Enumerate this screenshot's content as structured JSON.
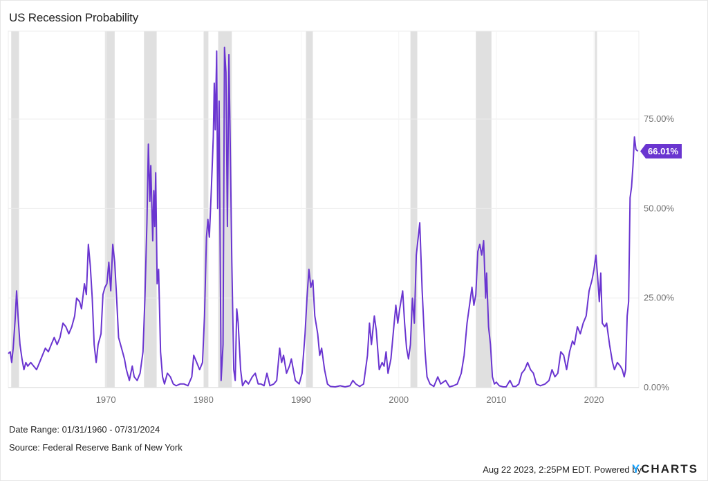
{
  "title": "US Recession Probability",
  "footer": {
    "date_range": "Date Range: 01/31/1960 - 07/31/2024",
    "source": "Source: Federal Reserve Bank of New York",
    "timestamp": "Aug 22 2023, 2:25PM EDT. Powered by",
    "brand_y": "Y",
    "brand_rest": "CHARTS"
  },
  "colors": {
    "line": "#6a35d0",
    "recession_band": "#e0e0e0",
    "grid": "#ececec",
    "label_bg": "#6a35d0",
    "brand_accent": "#1aa5ff"
  },
  "last_value_label": "66.01%",
  "chart_data": {
    "type": "line",
    "title": "US Recession Probability",
    "xlabel": "",
    "ylabel": "",
    "x_range": [
      1960.0,
      2024.6
    ],
    "ylim": [
      0,
      100
    ],
    "x_ticks": [
      1970,
      1980,
      1990,
      2000,
      2010,
      2020
    ],
    "x_tick_labels": [
      "1970",
      "1980",
      "1990",
      "2000",
      "2010",
      "2020"
    ],
    "y_ticks": [
      0,
      25,
      50,
      75
    ],
    "y_tick_labels": [
      "0.00%",
      "25.00%",
      "50.00%",
      "75.00%"
    ],
    "grid": true,
    "y_axis_position": "right",
    "legend": null,
    "last_value": 66.01,
    "recessions": [
      [
        1960.3,
        1961.1
      ],
      [
        1969.9,
        1970.9
      ],
      [
        1973.9,
        1975.2
      ],
      [
        1980.0,
        1980.5
      ],
      [
        1981.5,
        1982.9
      ],
      [
        1990.5,
        1991.2
      ],
      [
        2001.2,
        2001.9
      ],
      [
        2007.9,
        2009.5
      ],
      [
        2020.1,
        2020.3
      ]
    ],
    "series": [
      {
        "name": "US Recession Probability",
        "unit": "%",
        "points": [
          [
            1960.0,
            9.5
          ],
          [
            1960.2,
            10
          ],
          [
            1960.35,
            7
          ],
          [
            1960.5,
            11
          ],
          [
            1960.7,
            19
          ],
          [
            1960.85,
            27
          ],
          [
            1961.0,
            20
          ],
          [
            1961.2,
            12
          ],
          [
            1961.4,
            8
          ],
          [
            1961.6,
            5
          ],
          [
            1961.8,
            7
          ],
          [
            1962.0,
            6
          ],
          [
            1962.3,
            7
          ],
          [
            1962.6,
            6
          ],
          [
            1962.9,
            5
          ],
          [
            1963.2,
            7
          ],
          [
            1963.5,
            9
          ],
          [
            1963.8,
            11
          ],
          [
            1964.1,
            10
          ],
          [
            1964.4,
            12
          ],
          [
            1964.7,
            14
          ],
          [
            1965.0,
            12
          ],
          [
            1965.3,
            14
          ],
          [
            1965.6,
            18
          ],
          [
            1965.9,
            17
          ],
          [
            1966.2,
            15
          ],
          [
            1966.5,
            17
          ],
          [
            1966.8,
            20
          ],
          [
            1967.0,
            25
          ],
          [
            1967.3,
            24
          ],
          [
            1967.5,
            22
          ],
          [
            1967.8,
            29
          ],
          [
            1968.0,
            26
          ],
          [
            1968.2,
            40
          ],
          [
            1968.4,
            34
          ],
          [
            1968.6,
            25
          ],
          [
            1968.8,
            12
          ],
          [
            1969.0,
            7
          ],
          [
            1969.2,
            12
          ],
          [
            1969.5,
            15
          ],
          [
            1969.7,
            26
          ],
          [
            1969.9,
            28
          ],
          [
            1970.1,
            29
          ],
          [
            1970.3,
            35
          ],
          [
            1970.5,
            27
          ],
          [
            1970.7,
            40
          ],
          [
            1970.9,
            35
          ],
          [
            1971.1,
            25
          ],
          [
            1971.3,
            14
          ],
          [
            1971.6,
            11
          ],
          [
            1971.9,
            8
          ],
          [
            1972.1,
            5
          ],
          [
            1972.4,
            2
          ],
          [
            1972.7,
            6
          ],
          [
            1972.9,
            3
          ],
          [
            1973.2,
            2
          ],
          [
            1973.5,
            4
          ],
          [
            1973.8,
            10
          ],
          [
            1974.0,
            25
          ],
          [
            1974.2,
            46
          ],
          [
            1974.35,
            68
          ],
          [
            1974.5,
            52
          ],
          [
            1974.6,
            62
          ],
          [
            1974.8,
            41
          ],
          [
            1974.9,
            55
          ],
          [
            1975.0,
            45
          ],
          [
            1975.1,
            60
          ],
          [
            1975.25,
            29
          ],
          [
            1975.4,
            33
          ],
          [
            1975.6,
            10
          ],
          [
            1975.8,
            3
          ],
          [
            1976.0,
            1
          ],
          [
            1976.3,
            4
          ],
          [
            1976.6,
            3
          ],
          [
            1976.9,
            1
          ],
          [
            1977.2,
            0.5
          ],
          [
            1977.6,
            1
          ],
          [
            1978.0,
            1
          ],
          [
            1978.4,
            0.5
          ],
          [
            1978.8,
            3
          ],
          [
            1979.0,
            9
          ],
          [
            1979.3,
            7
          ],
          [
            1979.6,
            5
          ],
          [
            1979.9,
            7
          ],
          [
            1980.1,
            20
          ],
          [
            1980.3,
            42
          ],
          [
            1980.45,
            47
          ],
          [
            1980.6,
            42
          ],
          [
            1980.8,
            55
          ],
          [
            1981.0,
            70
          ],
          [
            1981.1,
            85
          ],
          [
            1981.2,
            72
          ],
          [
            1981.35,
            94
          ],
          [
            1981.45,
            50
          ],
          [
            1981.6,
            80
          ],
          [
            1981.8,
            2
          ],
          [
            1982.0,
            12
          ],
          [
            1982.15,
            95
          ],
          [
            1982.3,
            88
          ],
          [
            1982.45,
            45
          ],
          [
            1982.6,
            93
          ],
          [
            1982.75,
            65
          ],
          [
            1982.9,
            35
          ],
          [
            1983.1,
            5
          ],
          [
            1983.25,
            2
          ],
          [
            1983.4,
            22
          ],
          [
            1983.55,
            18
          ],
          [
            1983.8,
            5
          ],
          [
            1984.0,
            0.5
          ],
          [
            1984.3,
            2
          ],
          [
            1984.6,
            1
          ],
          [
            1985.0,
            3
          ],
          [
            1985.3,
            4
          ],
          [
            1985.6,
            1
          ],
          [
            1985.9,
            1
          ],
          [
            1986.2,
            0.5
          ],
          [
            1986.5,
            4
          ],
          [
            1986.8,
            0.5
          ],
          [
            1987.2,
            1
          ],
          [
            1987.5,
            2
          ],
          [
            1987.8,
            11
          ],
          [
            1988.0,
            7
          ],
          [
            1988.2,
            9
          ],
          [
            1988.5,
            4
          ],
          [
            1988.8,
            6
          ],
          [
            1989.0,
            8
          ],
          [
            1989.4,
            2
          ],
          [
            1989.8,
            1
          ],
          [
            1990.1,
            4
          ],
          [
            1990.4,
            15
          ],
          [
            1990.6,
            25
          ],
          [
            1990.8,
            33
          ],
          [
            1991.0,
            28
          ],
          [
            1991.2,
            30
          ],
          [
            1991.4,
            20
          ],
          [
            1991.7,
            15
          ],
          [
            1991.9,
            9
          ],
          [
            1992.1,
            11
          ],
          [
            1992.4,
            5
          ],
          [
            1992.7,
            1
          ],
          [
            1993.0,
            0.3
          ],
          [
            1993.5,
            0.2
          ],
          [
            1994.0,
            0.5
          ],
          [
            1994.5,
            0.2
          ],
          [
            1995.0,
            0.5
          ],
          [
            1995.3,
            2
          ],
          [
            1995.6,
            1
          ],
          [
            1996.0,
            0.3
          ],
          [
            1996.4,
            1
          ],
          [
            1996.8,
            9
          ],
          [
            1997.0,
            18
          ],
          [
            1997.2,
            12
          ],
          [
            1997.5,
            20
          ],
          [
            1997.7,
            16
          ],
          [
            1998.0,
            5
          ],
          [
            1998.3,
            7
          ],
          [
            1998.5,
            6
          ],
          [
            1998.7,
            10
          ],
          [
            1998.9,
            4
          ],
          [
            1999.2,
            8
          ],
          [
            1999.5,
            17
          ],
          [
            1999.7,
            23
          ],
          [
            1999.9,
            18
          ],
          [
            2000.1,
            22
          ],
          [
            2000.4,
            27
          ],
          [
            2000.6,
            18
          ],
          [
            2000.8,
            11
          ],
          [
            2001.0,
            8
          ],
          [
            2001.2,
            12
          ],
          [
            2001.4,
            25
          ],
          [
            2001.6,
            18
          ],
          [
            2001.8,
            37
          ],
          [
            2002.0,
            42
          ],
          [
            2002.15,
            46
          ],
          [
            2002.4,
            27
          ],
          [
            2002.7,
            10
          ],
          [
            2002.9,
            3
          ],
          [
            2003.2,
            1
          ],
          [
            2003.6,
            0.3
          ],
          [
            2004.0,
            3
          ],
          [
            2004.3,
            1
          ],
          [
            2004.8,
            2
          ],
          [
            2005.2,
            0.2
          ],
          [
            2005.6,
            0.5
          ],
          [
            2006.0,
            1
          ],
          [
            2006.4,
            4
          ],
          [
            2006.7,
            9
          ],
          [
            2007.0,
            18
          ],
          [
            2007.3,
            24
          ],
          [
            2007.5,
            28
          ],
          [
            2007.7,
            23
          ],
          [
            2007.9,
            26
          ],
          [
            2008.1,
            38
          ],
          [
            2008.3,
            40
          ],
          [
            2008.5,
            37
          ],
          [
            2008.7,
            41
          ],
          [
            2008.9,
            25
          ],
          [
            2009.0,
            32
          ],
          [
            2009.2,
            17
          ],
          [
            2009.4,
            12
          ],
          [
            2009.6,
            3
          ],
          [
            2009.8,
            1
          ],
          [
            2010.0,
            1.5
          ],
          [
            2010.3,
            0.5
          ],
          [
            2010.7,
            0.2
          ],
          [
            2011.0,
            0.2
          ],
          [
            2011.4,
            2
          ],
          [
            2011.7,
            0.3
          ],
          [
            2012.0,
            0.3
          ],
          [
            2012.3,
            1
          ],
          [
            2012.6,
            4
          ],
          [
            2012.9,
            5
          ],
          [
            2013.2,
            7
          ],
          [
            2013.5,
            5
          ],
          [
            2013.8,
            4
          ],
          [
            2014.1,
            1
          ],
          [
            2014.5,
            0.5
          ],
          [
            2015.0,
            1
          ],
          [
            2015.4,
            2
          ],
          [
            2015.7,
            5
          ],
          [
            2016.0,
            3
          ],
          [
            2016.3,
            4
          ],
          [
            2016.6,
            10
          ],
          [
            2016.9,
            9
          ],
          [
            2017.2,
            5
          ],
          [
            2017.5,
            10
          ],
          [
            2017.8,
            13
          ],
          [
            2018.0,
            12
          ],
          [
            2018.3,
            17
          ],
          [
            2018.6,
            15
          ],
          [
            2018.9,
            18
          ],
          [
            2019.2,
            20
          ],
          [
            2019.5,
            27
          ],
          [
            2019.8,
            30
          ],
          [
            2020.0,
            33
          ],
          [
            2020.2,
            37
          ],
          [
            2020.4,
            30
          ],
          [
            2020.55,
            24
          ],
          [
            2020.7,
            32
          ],
          [
            2020.85,
            18
          ],
          [
            2021.1,
            17
          ],
          [
            2021.3,
            18
          ],
          [
            2021.6,
            12
          ],
          [
            2021.9,
            7
          ],
          [
            2022.1,
            5
          ],
          [
            2022.4,
            7
          ],
          [
            2022.7,
            6
          ],
          [
            2022.9,
            5
          ],
          [
            2023.1,
            3
          ],
          [
            2023.25,
            5
          ],
          [
            2023.4,
            20
          ],
          [
            2023.55,
            24
          ],
          [
            2023.7,
            53
          ],
          [
            2023.85,
            56
          ],
          [
            2024.0,
            62
          ],
          [
            2024.15,
            70
          ],
          [
            2024.3,
            66.5
          ],
          [
            2024.5,
            66.01
          ]
        ]
      }
    ]
  }
}
